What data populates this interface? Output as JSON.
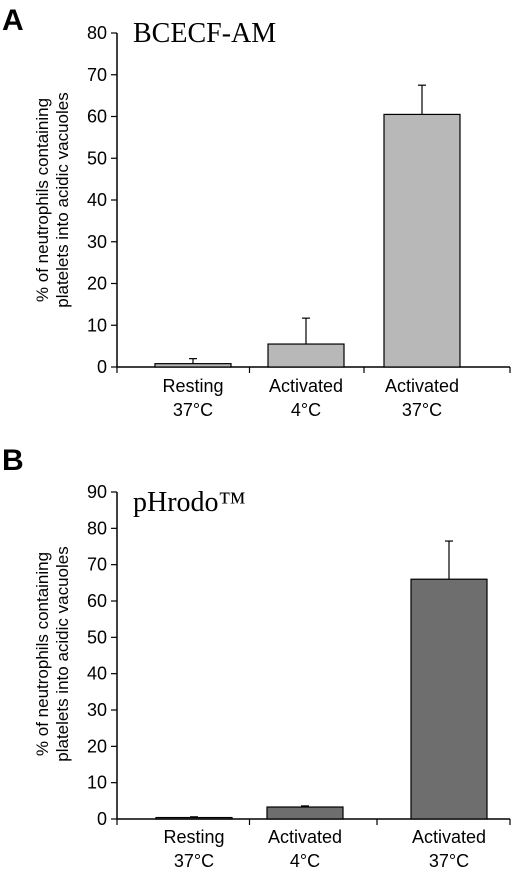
{
  "chart_data": [
    {
      "panel_label": "A",
      "type": "bar",
      "title": "BCECF-AM",
      "ylabel": [
        "% of neutrophils containing",
        "platelets into acidic vacuoles"
      ],
      "ylim": [
        0,
        80
      ],
      "yticks": [
        0,
        10,
        20,
        30,
        40,
        50,
        60,
        70,
        80
      ],
      "categories": [
        [
          "Resting",
          "37°C"
        ],
        [
          "Activated",
          "4°C"
        ],
        [
          "Activated",
          "37°C"
        ]
      ],
      "values": [
        0.8,
        5.5,
        60.5
      ],
      "errors": [
        1.2,
        6.2,
        7.0
      ],
      "bar_color": "#b8b8b8",
      "grid": false
    },
    {
      "panel_label": "B",
      "type": "bar",
      "title": "pHrodo™",
      "ylabel": [
        "% of neutrophils containing",
        "platelets into acidic vacuoles"
      ],
      "ylim": [
        0,
        90
      ],
      "yticks": [
        0,
        10,
        20,
        30,
        40,
        50,
        60,
        70,
        80,
        90
      ],
      "categories": [
        [
          "Resting",
          "37°C"
        ],
        [
          "Activated",
          "4°C"
        ],
        [
          "Activated",
          "37°C"
        ]
      ],
      "values": [
        0.4,
        3.3,
        66.0
      ],
      "errors": [
        0.2,
        0.3,
        10.5
      ],
      "bar_color": "#6e6e6e",
      "grid": false
    }
  ]
}
